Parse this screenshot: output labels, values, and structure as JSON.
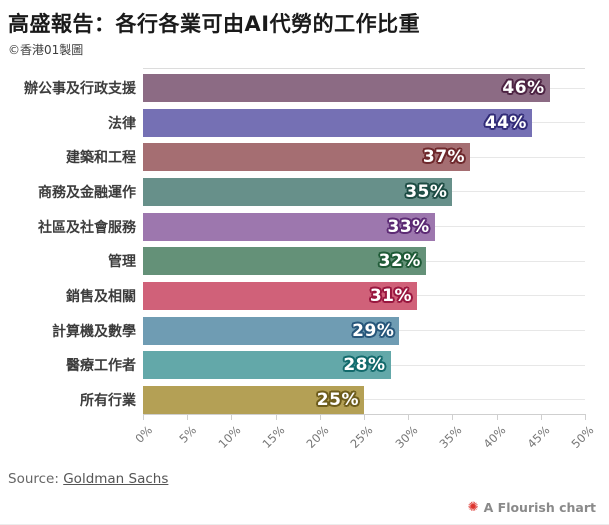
{
  "header": {
    "title": "高盛報告：各行各業可由AI代勞的工作比重",
    "credit": "©香港01製圖"
  },
  "chart_data": {
    "type": "bar",
    "orientation": "horizontal",
    "title": "高盛報告：各行各業可由AI代勞的工作比重",
    "categories": [
      "辦公事及行政支援",
      "法律",
      "建築和工程",
      "商務及金融運作",
      "社區及社會服務",
      "管理",
      "銷售及相關",
      "計算機及數學",
      "醫療工作者",
      "所有行業"
    ],
    "values": [
      46,
      44,
      37,
      35,
      33,
      32,
      31,
      29,
      28,
      25
    ],
    "value_labels": [
      "46%",
      "44%",
      "37%",
      "35%",
      "33%",
      "32%",
      "31%",
      "29%",
      "28%",
      "25%"
    ],
    "bar_colors": [
      "#8c6b84",
      "#7570b4",
      "#a56e72",
      "#67908a",
      "#9d77ae",
      "#649178",
      "#d06179",
      "#6f9cb3",
      "#63a8a9",
      "#b4a055"
    ],
    "value_outline_colors": [
      "#4d2343",
      "#322c78",
      "#6e282c",
      "#1d4c44",
      "#5c2a74",
      "#1e5a36",
      "#99173f",
      "#27567a",
      "#136a6c",
      "#6d5c1c"
    ],
    "x_tick_labels": [
      "0%",
      "5%",
      "10%",
      "15%",
      "20%",
      "25%",
      "30%",
      "35%",
      "40%",
      "45%",
      "50%"
    ],
    "xlim": [
      0,
      50
    ],
    "xlabel": "",
    "ylabel": "",
    "grid": "horizontal row lines, top and bottom axis borders",
    "legend": "none"
  },
  "footer": {
    "source_prefix": "Source: ",
    "source_link_text": "Goldman Sachs",
    "attribution_icon": "flourish-logo",
    "attribution_icon_glyph": "✺",
    "attribution_icon_color": "#dd342e",
    "attribution_text": "A Flourish chart"
  }
}
